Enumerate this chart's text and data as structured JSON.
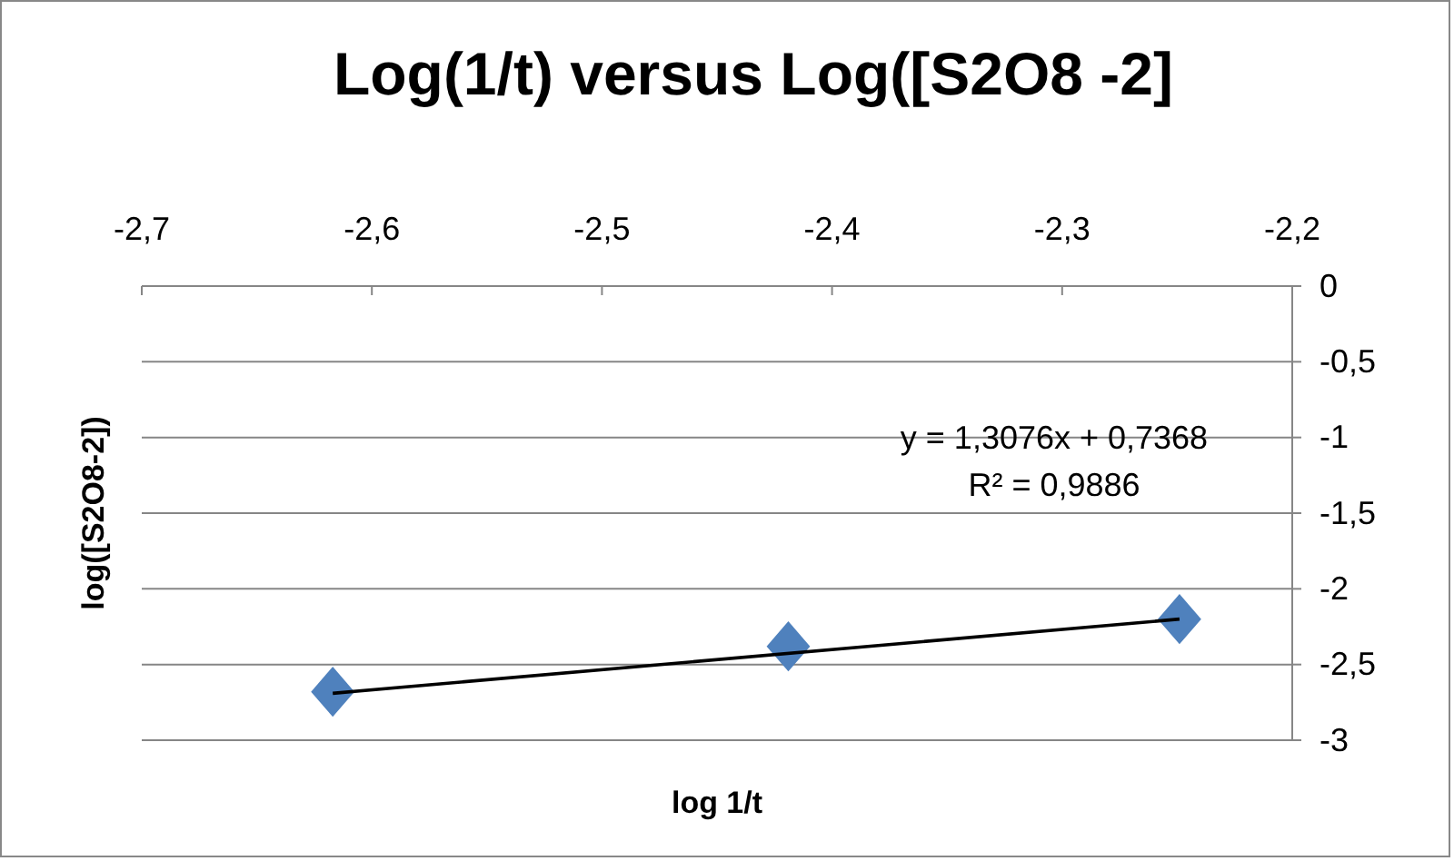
{
  "chart_data": {
    "type": "scatter",
    "title": "Log(1/t) versus Log([S2O8 -2]",
    "xlabel": "log 1/t",
    "ylabel": "log([S2O8-2])",
    "series": [
      {
        "color": "#4f81bd",
        "marker": "diamond",
        "x": [
          -2.617,
          -2.419,
          -2.249
        ],
        "values": [
          -2.68,
          -2.38,
          -2.2
        ]
      },
      {
        "type": "line",
        "color": "#000000",
        "marker": "none",
        "line_style": "solid",
        "x": [
          -2.617,
          -2.249
        ],
        "values": [
          -2.69,
          -2.2
        ]
      }
    ],
    "xlim": [
      -2.7,
      -2.2
    ],
    "xticks": [
      {
        "value": -2.7,
        "label": "-2,7"
      },
      {
        "value": -2.6,
        "label": "-2,6"
      },
      {
        "value": -2.5,
        "label": "-2,5"
      },
      {
        "value": -2.4,
        "label": "-2,4"
      },
      {
        "value": -2.3,
        "label": "-2,3"
      },
      {
        "value": -2.2,
        "label": "-2,2"
      }
    ],
    "ylim": [
      -3,
      0
    ],
    "yticks": [
      0,
      {
        "value": -0.5,
        "label": "-0,5"
      },
      -1,
      {
        "value": -1.5,
        "label": "-1,5"
      },
      -2,
      {
        "value": -2.5,
        "label": "-2,5"
      },
      -3
    ],
    "grid": "y",
    "annotations": [
      "y = 1,3076x + 0,7368",
      "R² = 0,9886"
    ]
  }
}
